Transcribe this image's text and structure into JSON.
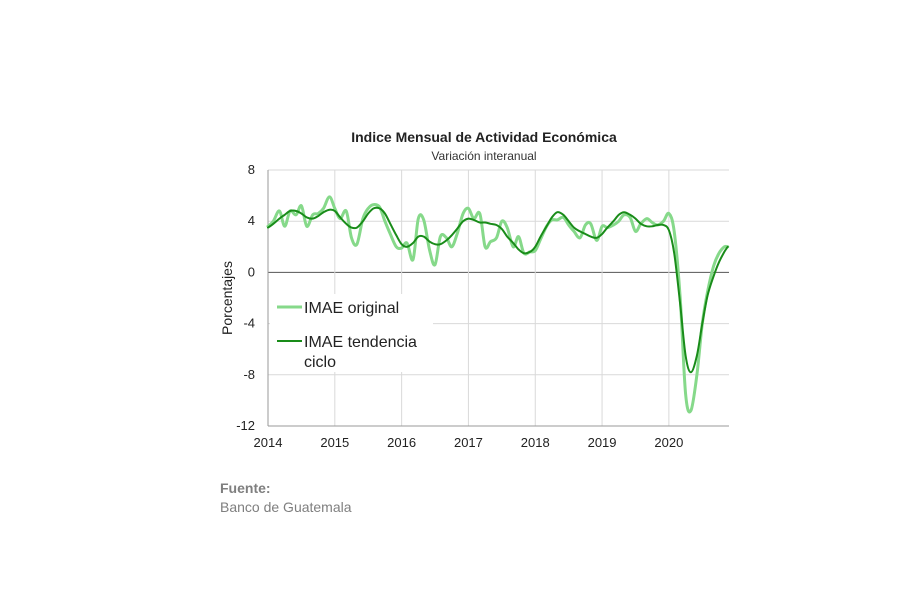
{
  "chart_data": {
    "type": "line",
    "title": "Indice Mensual de  Actividad Económica",
    "subtitle": "Variación interanual",
    "ylabel": "Porcentajes",
    "xlabel": "",
    "ylim": [
      -12,
      8
    ],
    "yticks": [
      8,
      4,
      0,
      -4,
      -8,
      -12
    ],
    "xlim": [
      2014,
      2020.9
    ],
    "xticks": [
      2014,
      2015,
      2016,
      2017,
      2018,
      2019,
      2020
    ],
    "grid": true,
    "legend_position": "left-middle",
    "series": [
      {
        "name": "IMAE original",
        "color": "#86d98a",
        "points": [
          [
            2014.0,
            3.6
          ],
          [
            2014.08,
            4.0
          ],
          [
            2014.17,
            4.8
          ],
          [
            2014.25,
            3.6
          ],
          [
            2014.33,
            4.8
          ],
          [
            2014.42,
            4.5
          ],
          [
            2014.5,
            5.2
          ],
          [
            2014.58,
            3.6
          ],
          [
            2014.67,
            4.5
          ],
          [
            2014.75,
            4.6
          ],
          [
            2014.83,
            5.0
          ],
          [
            2014.92,
            5.9
          ],
          [
            2015.0,
            5.0
          ],
          [
            2015.08,
            4.2
          ],
          [
            2015.17,
            4.8
          ],
          [
            2015.25,
            2.7
          ],
          [
            2015.33,
            2.2
          ],
          [
            2015.42,
            4.2
          ],
          [
            2015.5,
            5.0
          ],
          [
            2015.58,
            5.3
          ],
          [
            2015.67,
            5.1
          ],
          [
            2015.75,
            4.0
          ],
          [
            2015.83,
            3.0
          ],
          [
            2015.92,
            2.0
          ],
          [
            2016.0,
            1.9
          ],
          [
            2016.08,
            2.3
          ],
          [
            2016.17,
            1.0
          ],
          [
            2016.25,
            4.2
          ],
          [
            2016.33,
            4.1
          ],
          [
            2016.42,
            1.7
          ],
          [
            2016.5,
            0.6
          ],
          [
            2016.58,
            2.8
          ],
          [
            2016.67,
            2.7
          ],
          [
            2016.75,
            2.0
          ],
          [
            2016.83,
            3.0
          ],
          [
            2016.92,
            4.6
          ],
          [
            2017.0,
            5.0
          ],
          [
            2017.08,
            4.2
          ],
          [
            2017.17,
            4.6
          ],
          [
            2017.25,
            2.0
          ],
          [
            2017.33,
            2.4
          ],
          [
            2017.42,
            2.7
          ],
          [
            2017.5,
            4.0
          ],
          [
            2017.58,
            3.5
          ],
          [
            2017.67,
            2.0
          ],
          [
            2017.75,
            2.8
          ],
          [
            2017.83,
            1.5
          ],
          [
            2017.92,
            1.6
          ],
          [
            2018.0,
            1.7
          ],
          [
            2018.08,
            2.6
          ],
          [
            2018.17,
            3.6
          ],
          [
            2018.25,
            4.1
          ],
          [
            2018.33,
            4.1
          ],
          [
            2018.42,
            4.3
          ],
          [
            2018.5,
            3.7
          ],
          [
            2018.58,
            3.2
          ],
          [
            2018.67,
            2.7
          ],
          [
            2018.75,
            3.7
          ],
          [
            2018.83,
            3.8
          ],
          [
            2018.92,
            2.5
          ],
          [
            2019.0,
            3.6
          ],
          [
            2019.08,
            3.5
          ],
          [
            2019.17,
            3.7
          ],
          [
            2019.25,
            4.0
          ],
          [
            2019.33,
            4.5
          ],
          [
            2019.42,
            4.3
          ],
          [
            2019.5,
            3.2
          ],
          [
            2019.58,
            3.8
          ],
          [
            2019.67,
            4.2
          ],
          [
            2019.75,
            3.9
          ],
          [
            2019.83,
            3.7
          ],
          [
            2019.92,
            4.0
          ],
          [
            2020.0,
            4.6
          ],
          [
            2020.08,
            3.2
          ],
          [
            2020.17,
            -2.0
          ],
          [
            2020.25,
            -9.5
          ],
          [
            2020.33,
            -10.8
          ],
          [
            2020.42,
            -8.0
          ],
          [
            2020.5,
            -4.0
          ],
          [
            2020.58,
            -1.5
          ],
          [
            2020.67,
            0.5
          ],
          [
            2020.75,
            1.5
          ],
          [
            2020.83,
            2.0
          ],
          [
            2020.88,
            2.0
          ]
        ]
      },
      {
        "name": "IMAE tendencia ciclo",
        "color": "#198c19",
        "points": [
          [
            2014.0,
            3.5
          ],
          [
            2014.08,
            3.8
          ],
          [
            2014.17,
            4.2
          ],
          [
            2014.25,
            4.5
          ],
          [
            2014.33,
            4.8
          ],
          [
            2014.42,
            4.8
          ],
          [
            2014.5,
            4.6
          ],
          [
            2014.58,
            4.3
          ],
          [
            2014.67,
            4.2
          ],
          [
            2014.75,
            4.4
          ],
          [
            2014.83,
            4.7
          ],
          [
            2014.92,
            4.9
          ],
          [
            2015.0,
            4.8
          ],
          [
            2015.08,
            4.3
          ],
          [
            2015.17,
            3.8
          ],
          [
            2015.25,
            3.5
          ],
          [
            2015.33,
            3.5
          ],
          [
            2015.42,
            4.0
          ],
          [
            2015.5,
            4.6
          ],
          [
            2015.58,
            5.0
          ],
          [
            2015.67,
            5.0
          ],
          [
            2015.75,
            4.6
          ],
          [
            2015.83,
            3.8
          ],
          [
            2015.92,
            2.9
          ],
          [
            2016.0,
            2.2
          ],
          [
            2016.08,
            2.0
          ],
          [
            2016.17,
            2.3
          ],
          [
            2016.25,
            2.8
          ],
          [
            2016.33,
            2.8
          ],
          [
            2016.42,
            2.4
          ],
          [
            2016.5,
            2.2
          ],
          [
            2016.58,
            2.2
          ],
          [
            2016.67,
            2.5
          ],
          [
            2016.75,
            2.9
          ],
          [
            2016.83,
            3.4
          ],
          [
            2016.92,
            4.0
          ],
          [
            2017.0,
            4.2
          ],
          [
            2017.08,
            4.1
          ],
          [
            2017.17,
            3.9
          ],
          [
            2017.25,
            3.9
          ],
          [
            2017.33,
            3.8
          ],
          [
            2017.42,
            3.7
          ],
          [
            2017.5,
            3.4
          ],
          [
            2017.58,
            2.8
          ],
          [
            2017.67,
            2.3
          ],
          [
            2017.75,
            1.8
          ],
          [
            2017.83,
            1.5
          ],
          [
            2017.92,
            1.6
          ],
          [
            2018.0,
            2.0
          ],
          [
            2018.08,
            2.8
          ],
          [
            2018.17,
            3.6
          ],
          [
            2018.25,
            4.3
          ],
          [
            2018.33,
            4.7
          ],
          [
            2018.42,
            4.5
          ],
          [
            2018.5,
            4.0
          ],
          [
            2018.58,
            3.5
          ],
          [
            2018.67,
            3.2
          ],
          [
            2018.75,
            3.0
          ],
          [
            2018.83,
            2.8
          ],
          [
            2018.92,
            2.7
          ],
          [
            2019.0,
            3.0
          ],
          [
            2019.08,
            3.5
          ],
          [
            2019.17,
            4.0
          ],
          [
            2019.25,
            4.5
          ],
          [
            2019.33,
            4.7
          ],
          [
            2019.42,
            4.5
          ],
          [
            2019.5,
            4.2
          ],
          [
            2019.58,
            3.8
          ],
          [
            2019.67,
            3.6
          ],
          [
            2019.75,
            3.6
          ],
          [
            2019.83,
            3.7
          ],
          [
            2019.92,
            3.7
          ],
          [
            2020.0,
            3.3
          ],
          [
            2020.08,
            1.5
          ],
          [
            2020.17,
            -2.5
          ],
          [
            2020.25,
            -6.5
          ],
          [
            2020.33,
            -7.8
          ],
          [
            2020.42,
            -6.5
          ],
          [
            2020.5,
            -4.0
          ],
          [
            2020.58,
            -1.8
          ],
          [
            2020.67,
            -0.3
          ],
          [
            2020.75,
            0.8
          ],
          [
            2020.83,
            1.6
          ],
          [
            2020.88,
            2.0
          ]
        ]
      }
    ]
  },
  "source": {
    "label": "Fuente:",
    "text": "Banco de Guatemala"
  }
}
